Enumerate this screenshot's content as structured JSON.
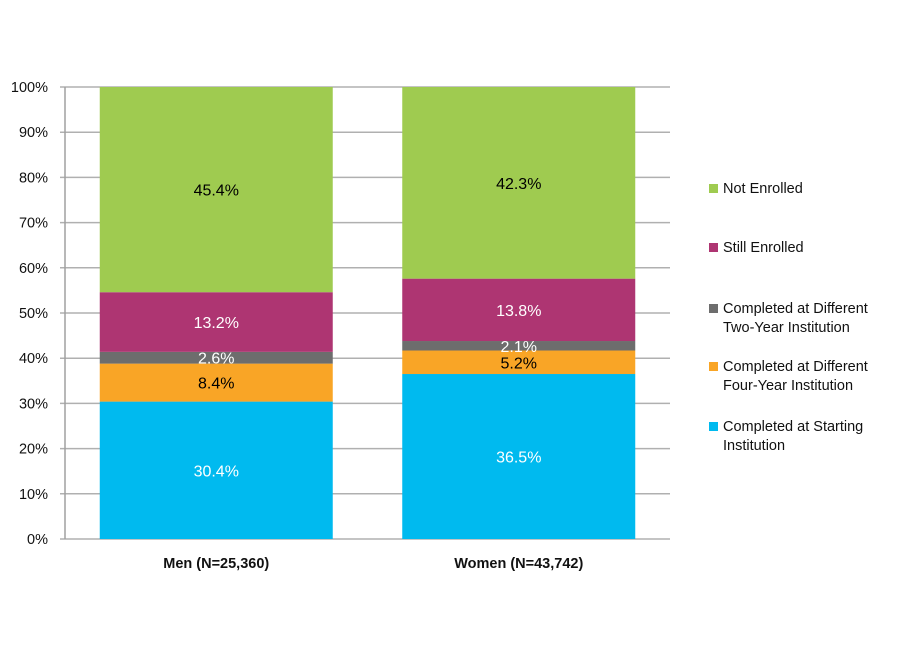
{
  "chart_data": {
    "type": "bar",
    "stacked": true,
    "categories": [
      "Men (N=25,360)",
      "Women (N=43,742)"
    ],
    "series": [
      {
        "name": "Completed at Starting Institution",
        "color": "#00BAEF",
        "label_color": "#ffffff",
        "values": [
          30.4,
          36.5
        ],
        "labels": [
          "30.4%",
          "36.5%"
        ]
      },
      {
        "name": "Completed at Different Four-Year Institution",
        "color": "#F9A526",
        "label_color": "#000000",
        "values": [
          8.4,
          5.2
        ],
        "labels": [
          "8.4%",
          "5.2%"
        ]
      },
      {
        "name": "Completed at Different Two-Year Institution",
        "color": "#6D6D6D",
        "label_color": "#ffffff",
        "values": [
          2.6,
          2.1
        ],
        "labels": [
          "2.6%",
          "2.1%"
        ]
      },
      {
        "name": "Still Enrolled",
        "color": "#AE3572",
        "label_color": "#ffffff",
        "values": [
          13.2,
          13.8
        ],
        "labels": [
          "13.2%",
          "13.8%"
        ]
      },
      {
        "name": "Not Enrolled",
        "color": "#9FCB50",
        "label_color": "#000000",
        "values": [
          45.4,
          42.3
        ],
        "labels": [
          "45.4%",
          "42.3%"
        ]
      }
    ],
    "legend": [
      {
        "line1": "Not Enrolled",
        "line2": "",
        "color": "#9FCB50"
      },
      {
        "line1": "Still Enrolled",
        "line2": "",
        "color": "#AE3572"
      },
      {
        "line1": "Completed at Different",
        "line2": "Two-Year Institution",
        "color": "#6D6D6D"
      },
      {
        "line1": "Completed at Different",
        "line2": "Four-Year Institution",
        "color": "#F9A526"
      },
      {
        "line1": "Completed at Starting",
        "line2": "Institution",
        "color": "#00BAEF"
      }
    ],
    "y_ticks": [
      "0%",
      "10%",
      "20%",
      "30%",
      "40%",
      "50%",
      "60%",
      "70%",
      "80%",
      "90%",
      "100%"
    ],
    "ylim": [
      0,
      100
    ],
    "grid": true,
    "legend_position": "right",
    "title": "",
    "xlabel": "",
    "ylabel": ""
  }
}
